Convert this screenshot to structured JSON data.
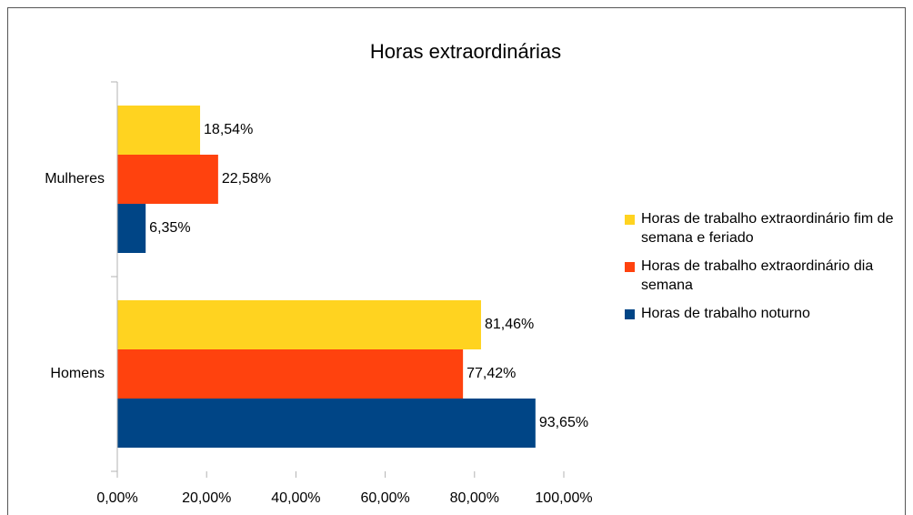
{
  "chart_data": {
    "type": "hbar",
    "title": "Horas extraordinárias",
    "categories": [
      "Mulheres",
      "Homens"
    ],
    "series": [
      {
        "name": "Horas de trabalho extraordinário fim de semana e feriado",
        "color": "#ffd320",
        "values": [
          18.54,
          81.46
        ],
        "value_labels": [
          "18,54%",
          "81,46%"
        ]
      },
      {
        "name": "Horas de trabalho extraordinário dia semana",
        "color": "#ff420e",
        "values": [
          22.58,
          77.42
        ],
        "value_labels": [
          "22,58%",
          "77,42%"
        ]
      },
      {
        "name": "Horas de trabalho noturno",
        "color": "#004586",
        "values": [
          6.35,
          93.65
        ],
        "value_labels": [
          "6,35%",
          "93,65%"
        ]
      }
    ],
    "xlim": [
      0,
      100
    ],
    "xticks": [
      {
        "value": 0,
        "label": "0,00%"
      },
      {
        "value": 20,
        "label": "20,00%"
      },
      {
        "value": 40,
        "label": "40,00%"
      },
      {
        "value": 60,
        "label": "60,00%"
      },
      {
        "value": 80,
        "label": "80,00%"
      },
      {
        "value": 100,
        "label": "100,00%"
      }
    ],
    "legend": "right",
    "grid": false
  }
}
